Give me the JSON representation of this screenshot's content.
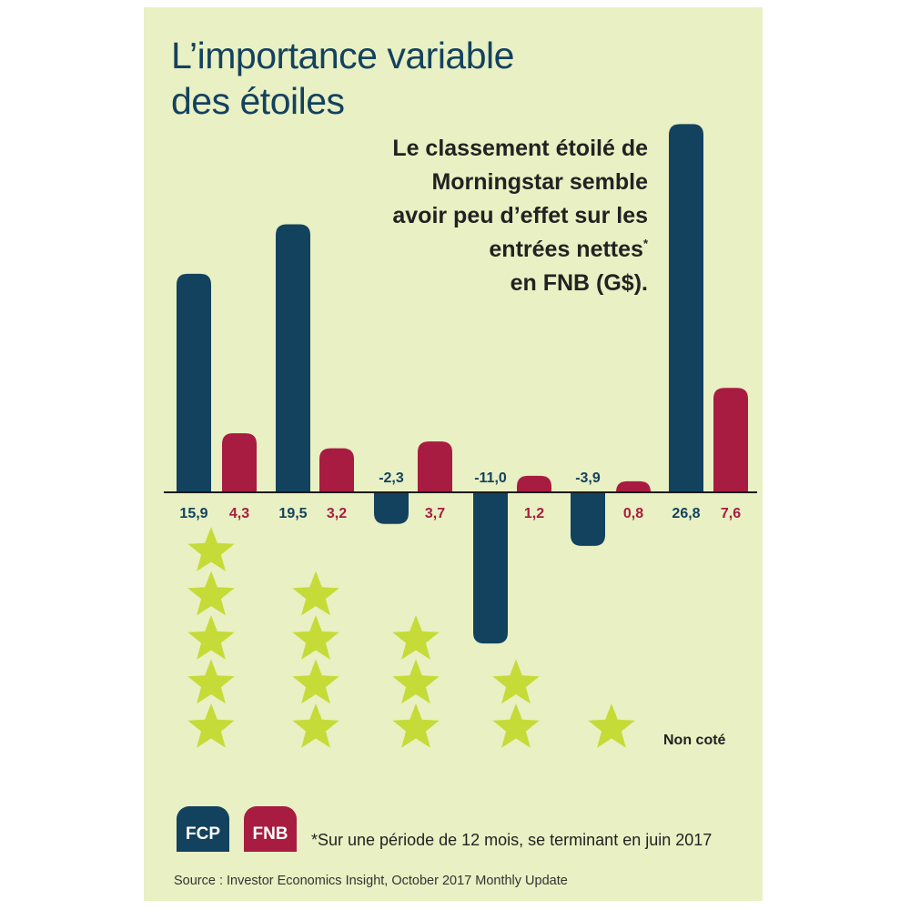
{
  "title_lines": [
    "L’importance variable",
    "des étoiles"
  ],
  "subtitle": {
    "lines": [
      "Le classement étoilé de",
      "Morningstar semble",
      "avoir peu d’effet sur les",
      "entrées nettes"
    ],
    "footnote_mark": "*",
    "last_line": "en FNB (G$)."
  },
  "colors": {
    "FCP": "#13425f",
    "FNB": "#a81c41",
    "star": "#c5db38",
    "title": "#13425f",
    "background": "#e9f0c3"
  },
  "chart_data": {
    "type": "bar",
    "categories": [
      "5 étoiles",
      "4 étoiles",
      "3 étoiles",
      "2 étoiles",
      "1 étoile",
      "Non coté"
    ],
    "category_star_counts": [
      5,
      4,
      3,
      2,
      1,
      0
    ],
    "series": [
      {
        "name": "FCP",
        "values": [
          15.9,
          19.5,
          -2.3,
          -11.0,
          -3.9,
          26.8
        ],
        "labels": [
          "15,9",
          "19,5",
          "-2,3",
          "-11,0",
          "-3,9",
          "26,8"
        ]
      },
      {
        "name": "FNB",
        "values": [
          4.3,
          3.2,
          3.7,
          1.2,
          0.8,
          7.6
        ],
        "labels": [
          "4,3",
          "3,2",
          "3,7",
          "1,2",
          "0,8",
          "7,6"
        ]
      }
    ],
    "unrated_label": "Non coté",
    "legend": [
      "FCP",
      "FNB"
    ],
    "legend_position": "bottom-left",
    "grid": false
  },
  "footnote": "*Sur une période de 12 mois, se terminant en juin 2017",
  "source": "Source : Investor Economics Insight, October 2017 Monthly Update"
}
